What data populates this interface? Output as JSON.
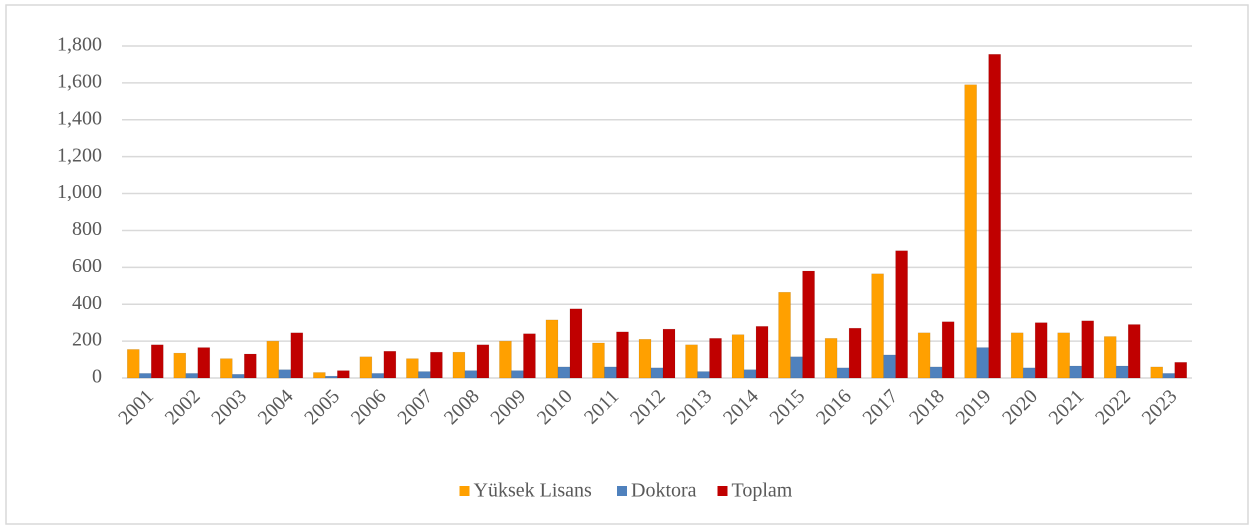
{
  "chart_data": {
    "type": "bar",
    "categories": [
      "2001",
      "2002",
      "2003",
      "2004",
      "2005",
      "2006",
      "2007",
      "2008",
      "2009",
      "2010",
      "2011",
      "2012",
      "2013",
      "2014",
      "2015",
      "2016",
      "2017",
      "2018",
      "2019",
      "2020",
      "2021",
      "2022",
      "2023"
    ],
    "series": [
      {
        "name": "Yüksek Lisans",
        "color": "#ffa000",
        "values": [
          155,
          135,
          105,
          200,
          30,
          115,
          105,
          140,
          200,
          315,
          190,
          210,
          180,
          235,
          465,
          215,
          565,
          245,
          1590,
          245,
          245,
          225,
          60
        ]
      },
      {
        "name": "Doktora",
        "color": "#4f81bd",
        "values": [
          25,
          25,
          20,
          45,
          10,
          25,
          35,
          40,
          40,
          60,
          60,
          55,
          35,
          45,
          115,
          55,
          125,
          60,
          165,
          55,
          65,
          65,
          25
        ]
      },
      {
        "name": "Toplam",
        "color": "#c00000",
        "values": [
          180,
          165,
          130,
          245,
          40,
          145,
          140,
          180,
          240,
          375,
          250,
          265,
          215,
          280,
          580,
          270,
          690,
          305,
          1755,
          300,
          310,
          290,
          85
        ]
      }
    ],
    "ylim": [
      0,
      1800
    ],
    "yticks": [
      0,
      200,
      400,
      600,
      800,
      {
        "value": 1000,
        "label": "1,000"
      },
      {
        "value": 1200,
        "label": "1,200"
      },
      {
        "value": 1400,
        "label": "1,400"
      },
      {
        "value": 1600,
        "label": "1,600"
      },
      {
        "value": 1800,
        "label": "1,800"
      }
    ],
    "grid": true,
    "legend": "bottom"
  }
}
